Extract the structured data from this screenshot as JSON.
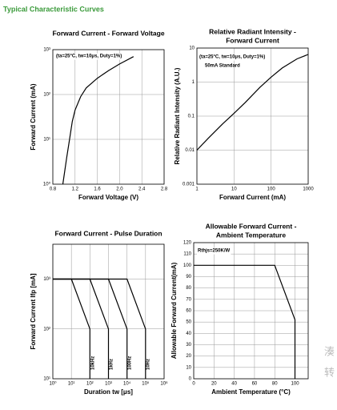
{
  "header": {
    "title": "Typical Characteristic Curves",
    "watermark": [
      "湊",
      "转"
    ]
  },
  "chart_data": [
    {
      "type": "line",
      "title": [
        "Forward Current - Forward Voltage"
      ],
      "x_label": "Forward Voltage (V)",
      "y_label": "Forward Current (mA)",
      "xlim": [
        0.8,
        2.8
      ],
      "ylim": [
        1,
        1000
      ],
      "yscale": "log",
      "grid": true,
      "xticks": [
        0.8,
        1.2,
        1.6,
        {
          "value": 2,
          "label": "2.0"
        },
        2.4,
        2.8
      ],
      "yticks": [
        {
          "value": 1,
          "label": "10⁰"
        },
        {
          "value": 10,
          "label": "10¹"
        },
        {
          "value": 100,
          "label": "10²"
        },
        {
          "value": 1000,
          "label": "10³"
        }
      ],
      "annotations": [
        "(ta=25°C, tw=10μs, Duty=1%)"
      ],
      "series": [
        {
          "color": "#000000",
          "x": [
            0.98,
            1.05,
            1.1,
            1.15,
            1.2,
            1.3,
            1.4,
            1.6,
            1.8,
            2.0,
            2.25
          ],
          "values": [
            1,
            4,
            10,
            25,
            45,
            90,
            140,
            230,
            340,
            480,
            700
          ]
        }
      ]
    },
    {
      "type": "line",
      "title": [
        "Relative Radiant Intensity -",
        "Forward Current"
      ],
      "x_label": "Forward Current (mA)",
      "y_label": "Relative Radiant Intensity (A.U.)",
      "xlim": [
        1,
        1000
      ],
      "ylim": [
        0.001,
        10
      ],
      "xscale": "log",
      "yscale": "log",
      "grid": true,
      "xticks": [
        1,
        10,
        100,
        1000
      ],
      "yticks": [
        0.001,
        0.01,
        0.1,
        1,
        10
      ],
      "annotations": [
        "(ta=25°C, tw=10μs, Duty=1%)",
        "50mA Standard"
      ],
      "series": [
        {
          "color": "#000000",
          "x": [
            1,
            2,
            5,
            10,
            20,
            50,
            100,
            200,
            500,
            1000
          ],
          "values": [
            0.01,
            0.022,
            0.06,
            0.12,
            0.25,
            0.7,
            1.4,
            2.6,
            4.8,
            6.5
          ]
        }
      ]
    },
    {
      "type": "line",
      "title": [
        "Forward Current - Pulse Duration"
      ],
      "x_label": "Duration tw [μs]",
      "y_label": "Forward Current Ifp [mA]",
      "xlim": [
        1,
        1000000
      ],
      "ylim": [
        10,
        5000
      ],
      "xscale": "log",
      "yscale": "log",
      "grid": true,
      "xticks": [
        {
          "value": 1,
          "label": "10⁰"
        },
        {
          "value": 10,
          "label": "10¹"
        },
        {
          "value": 100,
          "label": "10²"
        },
        {
          "value": 1000,
          "label": "10³"
        },
        {
          "value": 10000,
          "label": "10⁴"
        },
        {
          "value": 100000,
          "label": "10⁵"
        },
        {
          "value": 1000000,
          "label": "10⁶"
        }
      ],
      "yticks": [
        {
          "value": 10,
          "label": "10¹"
        },
        {
          "value": 100,
          "label": "10²"
        },
        {
          "value": 1000,
          "label": "10³"
        }
      ],
      "annotations": [
        "10kHz",
        "1kHz",
        "100Hz",
        "10Hz"
      ],
      "series": [
        {
          "color": "#000000",
          "x": [
            1,
            10,
            100,
            100
          ],
          "values": [
            1000,
            1000,
            100,
            10
          ]
        },
        {
          "color": "#000000",
          "x": [
            1,
            100,
            1000,
            1000
          ],
          "values": [
            1000,
            1000,
            100,
            10
          ]
        },
        {
          "color": "#000000",
          "x": [
            1,
            1000,
            10000,
            10000
          ],
          "values": [
            1000,
            1000,
            100,
            10
          ]
        },
        {
          "color": "#000000",
          "x": [
            1,
            10000,
            100000,
            100000
          ],
          "values": [
            1000,
            1000,
            100,
            10
          ]
        }
      ]
    },
    {
      "type": "line",
      "title": [
        "Allowable Forward Current -",
        "Ambient Temperature"
      ],
      "x_label": "Ambient Temperature (°C)",
      "y_label": "Allowable Forward Current(mA)",
      "xlim": [
        0,
        113
      ],
      "ylim": [
        0,
        120
      ],
      "grid": true,
      "xticks": [
        0,
        20,
        40,
        60,
        80,
        100
      ],
      "yticks": [
        0,
        10,
        20,
        30,
        40,
        50,
        60,
        70,
        80,
        90,
        100,
        110,
        120
      ],
      "annotations": [
        "Rthjs=250K/W"
      ],
      "series": [
        {
          "color": "#000000",
          "x": [
            0,
            80,
            100,
            100
          ],
          "values": [
            100,
            100,
            52,
            0
          ]
        }
      ]
    }
  ]
}
